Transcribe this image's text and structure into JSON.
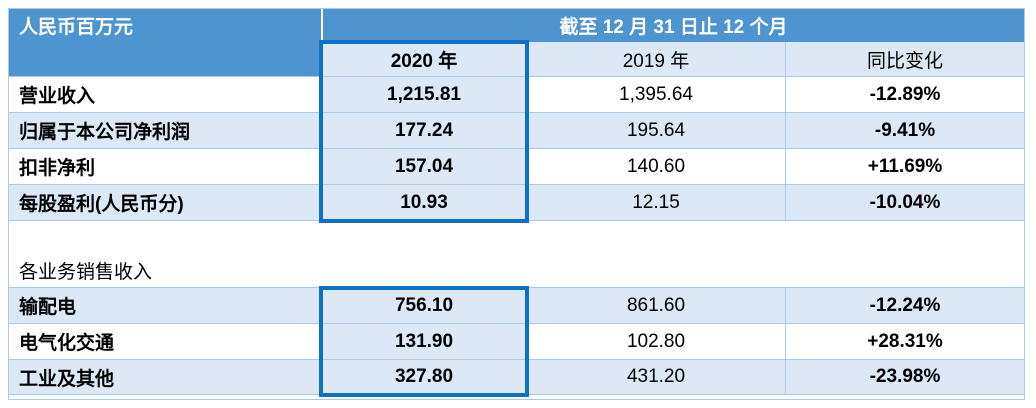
{
  "colors": {
    "header_blue": "#4e94d1",
    "band_blue": "#dce8f5",
    "grid_line": "#a9cbe9",
    "highlight_box_border": "#0e72c4"
  },
  "table": {
    "unit_label": "人民币百万元",
    "period_header": "截至 12 月 31 日止 12 个月",
    "columns": [
      "2020 年",
      "2019 年",
      "同比变化"
    ],
    "section_header": "各业务销售收入",
    "summary_rows": [
      {
        "label": "营业收入",
        "y2020": "1,215.81",
        "y2019": "1,395.64",
        "change": "-12.89%"
      },
      {
        "label": "归属于本公司净利润",
        "y2020": "177.24",
        "y2019": "195.64",
        "change": "-9.41%"
      },
      {
        "label": "扣非净利",
        "y2020": "157.04",
        "y2019": "140.60",
        "change": "+11.69%"
      },
      {
        "label": "每股盈利(人民币分)",
        "y2020": "10.93",
        "y2019": "12.15",
        "change": "-10.04%"
      }
    ],
    "segment_rows": [
      {
        "label": "输配电",
        "y2020": "756.10",
        "y2019": "861.60",
        "change": "-12.24%"
      },
      {
        "label": "电气化交通",
        "y2020": "131.90",
        "y2019": "102.80",
        "change": "+28.31%"
      },
      {
        "label": "工业及其他",
        "y2020": "327.80",
        "y2019": "431.20",
        "change": "-23.98%"
      }
    ]
  },
  "chart_data": {
    "type": "table",
    "title": "截至 12 月 31 日止 12 个月",
    "unit": "人民币百万元",
    "columns": [
      "",
      "2020 年",
      "2019 年",
      "同比变化"
    ],
    "rows": [
      [
        "营业收入",
        1215.81,
        1395.64,
        "-12.89%"
      ],
      [
        "归属于本公司净利润",
        177.24,
        195.64,
        "-9.41%"
      ],
      [
        "扣非净利",
        157.04,
        140.6,
        "+11.69%"
      ],
      [
        "每股盈利(人民币分)",
        10.93,
        12.15,
        "-10.04%"
      ],
      [
        "各业务销售收入",
        null,
        null,
        null
      ],
      [
        "输配电",
        756.1,
        861.6,
        "-12.24%"
      ],
      [
        "电气化交通",
        131.9,
        102.8,
        "+28.31%"
      ],
      [
        "工业及其他",
        327.8,
        431.2,
        "-23.98%"
      ]
    ],
    "highlighted_column": "2020 年"
  }
}
